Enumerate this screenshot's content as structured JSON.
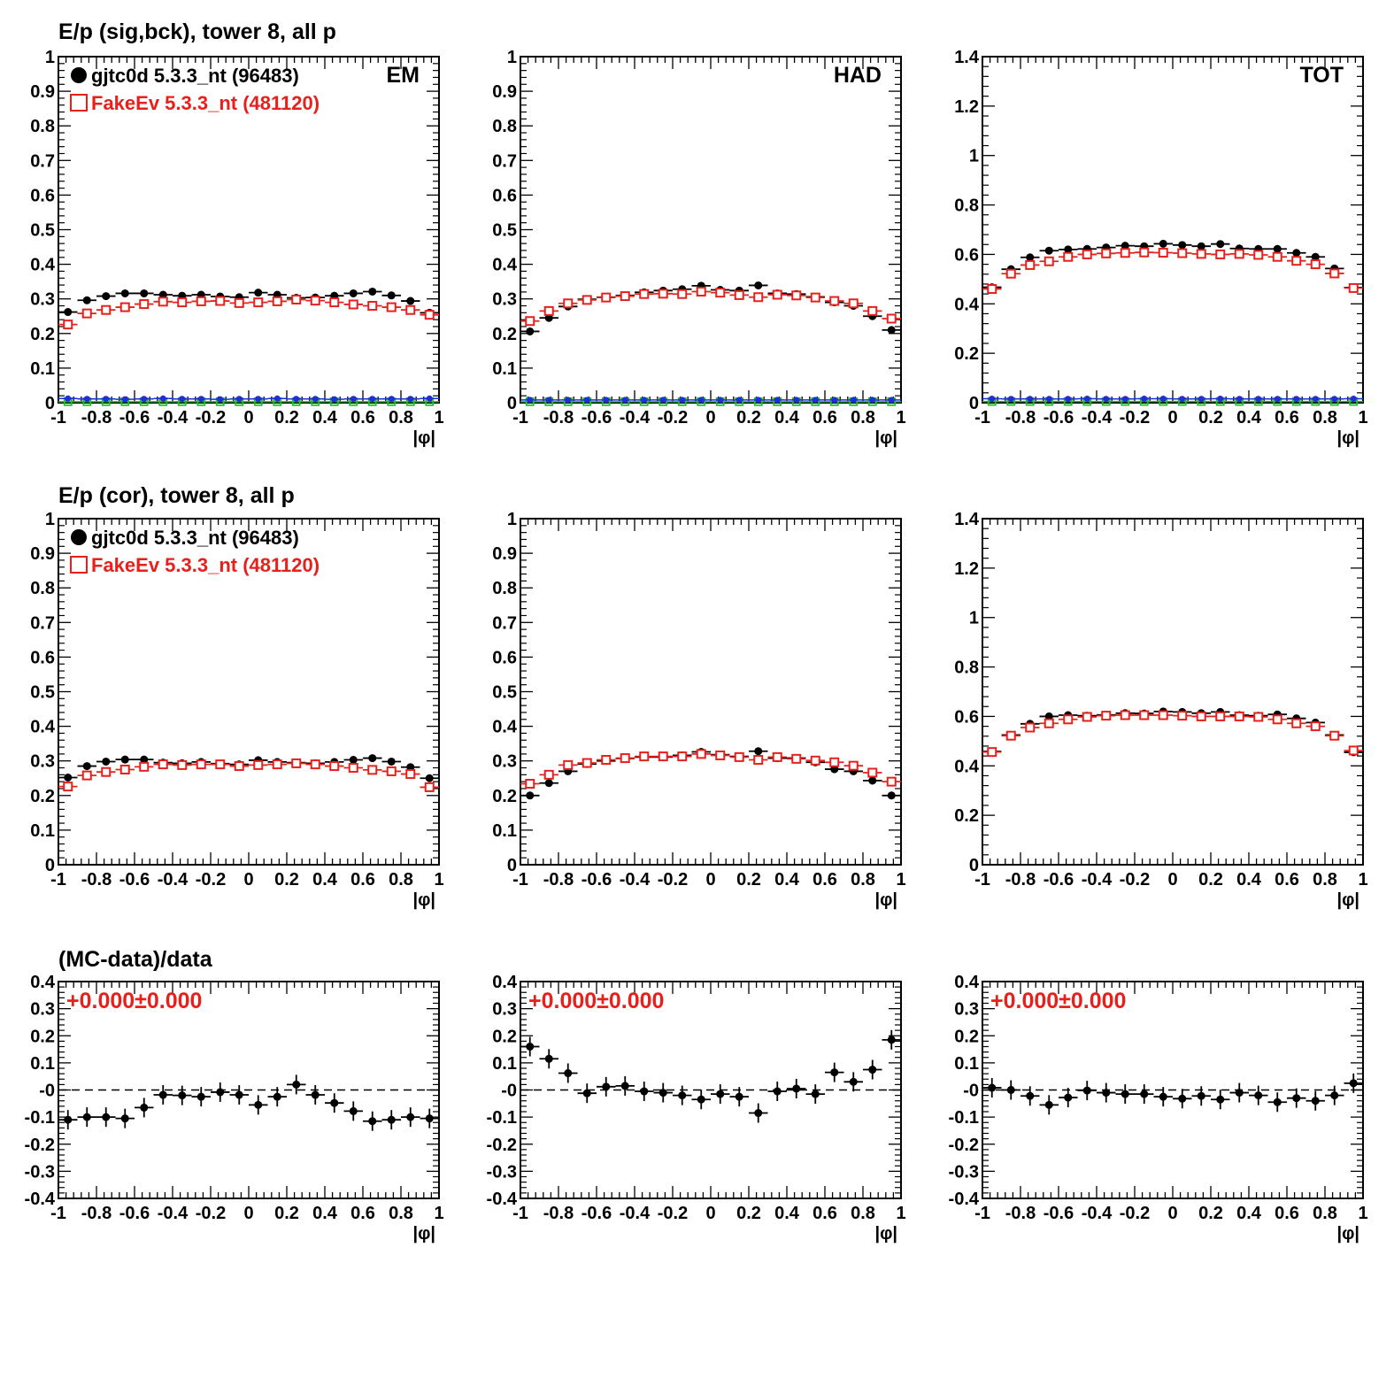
{
  "row_titles": [
    "E/p (sig,bck), tower 8, all p",
    "E/p (cor), tower 8, all p",
    "(MC-data)/data"
  ],
  "legend": {
    "data_label": "gjtc0d 5.3.3_nt (96483)",
    "mc_label": "FakeEv 5.3.3_nt (481120)"
  },
  "panel_labels": [
    "EM",
    "HAD",
    "TOT"
  ],
  "ratio_label": "+0.000±0.000",
  "colors": {
    "data": "#000000",
    "mc": "#e8201c",
    "blue": "#1f2fd8",
    "green": "#1fbf2f"
  },
  "xaxis": {
    "label": "|φ|",
    "range": [
      -1,
      1
    ],
    "ticks": [
      -1,
      -0.8,
      -0.6,
      -0.4,
      -0.2,
      0,
      0.2,
      0.4,
      0.6,
      0.8,
      1
    ],
    "tick_labels": [
      "-1",
      "-0.8",
      "-0.6",
      "-0.4",
      "-0.2",
      "0",
      "0.2",
      "0.4",
      "0.6",
      "0.8",
      "1"
    ]
  },
  "chart_data": [
    {
      "type": "scatter",
      "panel": "row1-EM",
      "ylim": [
        0,
        1
      ],
      "yticks": [
        0,
        0.1,
        0.2,
        0.3,
        0.4,
        0.5,
        0.6,
        0.7,
        0.8,
        0.9,
        1
      ],
      "ytick_labels": [
        "0",
        "0.1",
        "0.2",
        "0.3",
        "0.4",
        "0.5",
        "0.6",
        "0.7",
        "0.8",
        "0.9",
        "1"
      ],
      "x": [
        -0.95,
        -0.85,
        -0.75,
        -0.65,
        -0.55,
        -0.45,
        -0.35,
        -0.25,
        -0.15,
        -0.05,
        0.05,
        0.15,
        0.25,
        0.35,
        0.45,
        0.55,
        0.65,
        0.75,
        0.85,
        0.95
      ],
      "series": [
        {
          "values": [
            0.262,
            0.296,
            0.308,
            0.316,
            0.316,
            0.312,
            0.309,
            0.312,
            0.307,
            0.305,
            0.318,
            0.312,
            0.303,
            0.304,
            0.309,
            0.316,
            0.321,
            0.31,
            0.294,
            0.26
          ]
        },
        {
          "values": [
            0.226,
            0.258,
            0.268,
            0.276,
            0.285,
            0.292,
            0.29,
            0.293,
            0.294,
            0.288,
            0.29,
            0.293,
            0.298,
            0.295,
            0.29,
            0.284,
            0.28,
            0.276,
            0.268,
            0.254
          ]
        },
        {
          "values": [
            0.012,
            0.011,
            0.011,
            0.01,
            0.011,
            0.012,
            0.011,
            0.011,
            0.01,
            0.011,
            0.011,
            0.012,
            0.011,
            0.011,
            0.01,
            0.011,
            0.011,
            0.011,
            0.011,
            0.012
          ]
        },
        {
          "values": [
            0.003,
            0.003,
            0.003,
            0.003,
            0.003,
            0.003,
            0.003,
            0.003,
            0.003,
            0.003,
            0.003,
            0.003,
            0.003,
            0.003,
            0.003,
            0.003,
            0.003,
            0.003,
            0.003,
            0.003
          ]
        }
      ]
    },
    {
      "type": "scatter",
      "panel": "row1-HAD",
      "ylim": [
        0,
        1
      ],
      "yticks": [
        0,
        0.1,
        0.2,
        0.3,
        0.4,
        0.5,
        0.6,
        0.7,
        0.8,
        0.9,
        1
      ],
      "ytick_labels": [
        "0",
        "0.1",
        "0.2",
        "0.3",
        "0.4",
        "0.5",
        "0.6",
        "0.7",
        "0.8",
        "0.9",
        "1"
      ],
      "x": [
        -0.95,
        -0.85,
        -0.75,
        -0.65,
        -0.55,
        -0.45,
        -0.35,
        -0.25,
        -0.15,
        -0.05,
        0.05,
        0.15,
        0.25,
        0.35,
        0.45,
        0.55,
        0.65,
        0.75,
        0.85,
        0.95
      ],
      "series": [
        {
          "values": [
            0.206,
            0.245,
            0.278,
            0.299,
            0.305,
            0.31,
            0.319,
            0.324,
            0.328,
            0.338,
            0.326,
            0.324,
            0.339,
            0.316,
            0.314,
            0.306,
            0.29,
            0.28,
            0.25,
            0.21
          ]
        },
        {
          "values": [
            0.236,
            0.265,
            0.287,
            0.297,
            0.304,
            0.308,
            0.314,
            0.315,
            0.314,
            0.321,
            0.318,
            0.311,
            0.305,
            0.312,
            0.31,
            0.304,
            0.294,
            0.287,
            0.265,
            0.243
          ]
        },
        {
          "values": [
            0.008,
            0.008,
            0.008,
            0.008,
            0.008,
            0.008,
            0.008,
            0.008,
            0.008,
            0.008,
            0.008,
            0.008,
            0.008,
            0.008,
            0.008,
            0.008,
            0.008,
            0.008,
            0.008,
            0.008
          ]
        },
        {
          "values": [
            0.003,
            0.003,
            0.003,
            0.003,
            0.003,
            0.003,
            0.003,
            0.003,
            0.003,
            0.003,
            0.003,
            0.003,
            0.003,
            0.003,
            0.003,
            0.003,
            0.003,
            0.003,
            0.003,
            0.003
          ]
        }
      ]
    },
    {
      "type": "scatter",
      "panel": "row1-TOT",
      "ylim": [
        0,
        1.4
      ],
      "yticks": [
        0,
        0.2,
        0.4,
        0.6,
        0.8,
        1,
        1.2,
        1.4
      ],
      "ytick_labels": [
        "0",
        "0.2",
        "0.4",
        "0.6",
        "0.8",
        "1",
        "1.2",
        "1.4"
      ],
      "x": [
        -0.95,
        -0.85,
        -0.75,
        -0.65,
        -0.55,
        -0.45,
        -0.35,
        -0.25,
        -0.15,
        -0.05,
        0.05,
        0.15,
        0.25,
        0.35,
        0.45,
        0.55,
        0.65,
        0.75,
        0.85,
        0.95
      ],
      "series": [
        {
          "values": [
            0.467,
            0.54,
            0.588,
            0.615,
            0.62,
            0.622,
            0.628,
            0.635,
            0.633,
            0.643,
            0.638,
            0.633,
            0.642,
            0.624,
            0.622,
            0.622,
            0.606,
            0.59,
            0.543,
            0.466
          ]
        },
        {
          "values": [
            0.46,
            0.522,
            0.557,
            0.572,
            0.59,
            0.6,
            0.604,
            0.606,
            0.608,
            0.607,
            0.605,
            0.602,
            0.6,
            0.602,
            0.598,
            0.59,
            0.574,
            0.56,
            0.523,
            0.464
          ]
        },
        {
          "values": [
            0.016,
            0.015,
            0.015,
            0.015,
            0.015,
            0.016,
            0.015,
            0.015,
            0.016,
            0.016,
            0.015,
            0.015,
            0.016,
            0.015,
            0.015,
            0.015,
            0.015,
            0.015,
            0.015,
            0.016
          ]
        },
        {
          "values": [
            0.005,
            0.005,
            0.005,
            0.005,
            0.005,
            0.005,
            0.005,
            0.005,
            0.005,
            0.005,
            0.005,
            0.005,
            0.005,
            0.005,
            0.005,
            0.005,
            0.005,
            0.005,
            0.005,
            0.005
          ]
        }
      ]
    },
    {
      "type": "scatter",
      "panel": "row2-EM",
      "ylim": [
        0,
        1
      ],
      "yticks": [
        0,
        0.1,
        0.2,
        0.3,
        0.4,
        0.5,
        0.6,
        0.7,
        0.8,
        0.9,
        1
      ],
      "ytick_labels": [
        "0",
        "0.1",
        "0.2",
        "0.3",
        "0.4",
        "0.5",
        "0.6",
        "0.7",
        "0.8",
        "0.9",
        "1"
      ],
      "x": [
        -0.95,
        -0.85,
        -0.75,
        -0.65,
        -0.55,
        -0.45,
        -0.35,
        -0.25,
        -0.15,
        -0.05,
        0.05,
        0.15,
        0.25,
        0.35,
        0.45,
        0.55,
        0.65,
        0.75,
        0.85,
        0.95
      ],
      "series": [
        {
          "values": [
            0.252,
            0.285,
            0.298,
            0.304,
            0.304,
            0.295,
            0.293,
            0.297,
            0.292,
            0.29,
            0.302,
            0.297,
            0.295,
            0.293,
            0.297,
            0.303,
            0.308,
            0.298,
            0.282,
            0.25
          ]
        },
        {
          "values": [
            0.226,
            0.258,
            0.268,
            0.275,
            0.283,
            0.29,
            0.288,
            0.29,
            0.29,
            0.285,
            0.288,
            0.29,
            0.293,
            0.29,
            0.285,
            0.28,
            0.274,
            0.27,
            0.262,
            0.224
          ]
        }
      ]
    },
    {
      "type": "scatter",
      "panel": "row2-HAD",
      "ylim": [
        0,
        1
      ],
      "yticks": [
        0,
        0.1,
        0.2,
        0.3,
        0.4,
        0.5,
        0.6,
        0.7,
        0.8,
        0.9,
        1
      ],
      "ytick_labels": [
        "0",
        "0.1",
        "0.2",
        "0.3",
        "0.4",
        "0.5",
        "0.6",
        "0.7",
        "0.8",
        "0.9",
        "1"
      ],
      "x": [
        -0.95,
        -0.85,
        -0.75,
        -0.65,
        -0.55,
        -0.45,
        -0.35,
        -0.25,
        -0.15,
        -0.05,
        0.05,
        0.15,
        0.25,
        0.35,
        0.45,
        0.55,
        0.65,
        0.75,
        0.85,
        0.95
      ],
      "series": [
        {
          "values": [
            0.2,
            0.236,
            0.27,
            0.291,
            0.3,
            0.307,
            0.311,
            0.311,
            0.316,
            0.326,
            0.318,
            0.313,
            0.328,
            0.308,
            0.308,
            0.296,
            0.276,
            0.27,
            0.243,
            0.2
          ]
        },
        {
          "values": [
            0.234,
            0.26,
            0.288,
            0.294,
            0.303,
            0.308,
            0.313,
            0.313,
            0.313,
            0.32,
            0.316,
            0.311,
            0.303,
            0.311,
            0.306,
            0.301,
            0.296,
            0.286,
            0.266,
            0.24
          ]
        }
      ]
    },
    {
      "type": "scatter",
      "panel": "row2-TOT",
      "ylim": [
        0,
        1.4
      ],
      "yticks": [
        0,
        0.2,
        0.4,
        0.6,
        0.8,
        1,
        1.2,
        1.4
      ],
      "ytick_labels": [
        "0",
        "0.2",
        "0.4",
        "0.6",
        "0.8",
        "1",
        "1.2",
        "1.4"
      ],
      "x": [
        -0.95,
        -0.85,
        -0.75,
        -0.65,
        -0.55,
        -0.45,
        -0.35,
        -0.25,
        -0.15,
        -0.05,
        0.05,
        0.15,
        0.25,
        0.35,
        0.45,
        0.55,
        0.65,
        0.75,
        0.85,
        0.95
      ],
      "series": [
        {
          "values": [
            0.458,
            0.525,
            0.57,
            0.6,
            0.605,
            0.603,
            0.606,
            0.613,
            0.612,
            0.62,
            0.618,
            0.613,
            0.618,
            0.605,
            0.603,
            0.608,
            0.592,
            0.575,
            0.525,
            0.455
          ]
        },
        {
          "values": [
            0.456,
            0.522,
            0.555,
            0.572,
            0.588,
            0.598,
            0.603,
            0.605,
            0.605,
            0.605,
            0.603,
            0.6,
            0.6,
            0.6,
            0.598,
            0.588,
            0.572,
            0.56,
            0.522,
            0.462
          ]
        }
      ]
    },
    {
      "type": "scatter",
      "panel": "row3-EM",
      "ylim": [
        -0.4,
        0.4
      ],
      "yticks": [
        -0.4,
        -0.3,
        -0.2,
        -0.1,
        0,
        0.1,
        0.2,
        0.3,
        0.4
      ],
      "ytick_labels": [
        "-0.4",
        "-0.3",
        "-0.2",
        "-0.1",
        "-0",
        "0.1",
        "0.2",
        "0.3",
        "0.4"
      ],
      "x": [
        -0.95,
        -0.85,
        -0.75,
        -0.65,
        -0.55,
        -0.45,
        -0.35,
        -0.25,
        -0.15,
        -0.05,
        0.05,
        0.15,
        0.25,
        0.35,
        0.45,
        0.55,
        0.65,
        0.75,
        0.85,
        0.95
      ],
      "series": [
        {
          "values": [
            -0.11,
            -0.1,
            -0.1,
            -0.105,
            -0.065,
            -0.018,
            -0.02,
            -0.025,
            -0.008,
            -0.018,
            -0.055,
            -0.025,
            0.02,
            -0.018,
            -0.048,
            -0.078,
            -0.115,
            -0.11,
            -0.1,
            -0.105
          ]
        }
      ]
    },
    {
      "type": "scatter",
      "panel": "row3-HAD",
      "ylim": [
        -0.4,
        0.4
      ],
      "yticks": [
        -0.4,
        -0.3,
        -0.2,
        -0.1,
        0,
        0.1,
        0.2,
        0.3,
        0.4
      ],
      "ytick_labels": [
        "-0.4",
        "-0.3",
        "-0.2",
        "-0.1",
        "-0",
        "0.1",
        "0.2",
        "0.3",
        "0.4"
      ],
      "x": [
        -0.95,
        -0.85,
        -0.75,
        -0.65,
        -0.55,
        -0.45,
        -0.35,
        -0.25,
        -0.15,
        -0.05,
        0.05,
        0.15,
        0.25,
        0.35,
        0.45,
        0.55,
        0.65,
        0.75,
        0.85,
        0.95
      ],
      "series": [
        {
          "values": [
            0.16,
            0.115,
            0.062,
            -0.012,
            0.012,
            0.015,
            -0.005,
            -0.01,
            -0.02,
            -0.035,
            -0.015,
            -0.025,
            -0.085,
            -0.005,
            0.005,
            -0.015,
            0.065,
            0.03,
            0.075,
            0.185
          ]
        }
      ]
    },
    {
      "type": "scatter",
      "panel": "row3-TOT",
      "ylim": [
        -0.4,
        0.4
      ],
      "yticks": [
        -0.4,
        -0.3,
        -0.2,
        -0.1,
        0,
        0.1,
        0.2,
        0.3,
        0.4
      ],
      "ytick_labels": [
        "-0.4",
        "-0.3",
        "-0.2",
        "-0.1",
        "-0",
        "0.1",
        "0.2",
        "0.3",
        "0.4"
      ],
      "x": [
        -0.95,
        -0.85,
        -0.75,
        -0.65,
        -0.55,
        -0.45,
        -0.35,
        -0.25,
        -0.15,
        -0.05,
        0.05,
        0.15,
        0.25,
        0.35,
        0.45,
        0.55,
        0.65,
        0.75,
        0.85,
        0.95
      ],
      "series": [
        {
          "values": [
            0.008,
            0,
            -0.022,
            -0.055,
            -0.028,
            -0.002,
            -0.01,
            -0.015,
            -0.015,
            -0.025,
            -0.032,
            -0.022,
            -0.035,
            -0.01,
            -0.02,
            -0.045,
            -0.03,
            -0.04,
            -0.02,
            0.025
          ]
        }
      ]
    }
  ]
}
